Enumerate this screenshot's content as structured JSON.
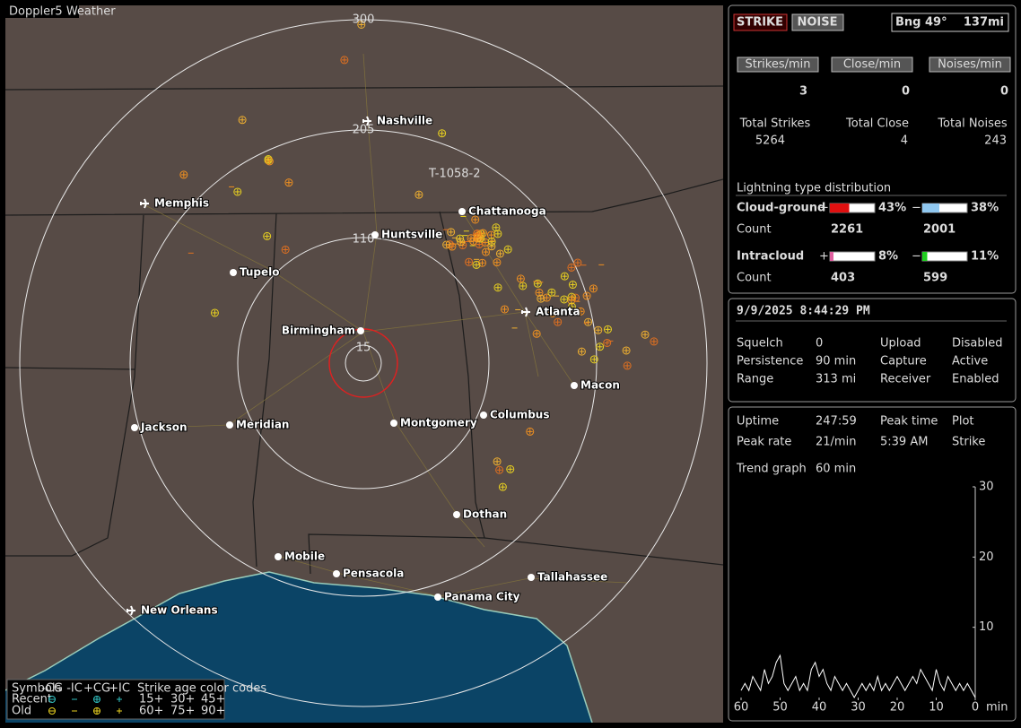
{
  "map": {
    "title": "Doppler5 Weather",
    "rings": [
      "300",
      "205",
      "110",
      "15"
    ],
    "track_label": "T-1058-2",
    "cities": [
      "Nashville",
      "Memphis",
      "Chattanooga",
      "Huntsville",
      "Tupelo",
      "Atlanta",
      "Birmingham",
      "Macon",
      "Jackson",
      "Meridian",
      "Montgomery",
      "Columbus",
      "Dothan",
      "Mobile",
      "Pensacola",
      "Tallahassee",
      "Panama City",
      "New Orleans"
    ],
    "legend": {
      "symbols_label": "Symbols",
      "symbol_types": [
        "-CG",
        "-IC",
        "+CG",
        "+IC"
      ],
      "age_label": "Strike age color codes",
      "rows": [
        "Recent",
        "Old"
      ],
      "ages": [
        [
          "15+",
          "30+",
          "45+"
        ],
        [
          "60+",
          "75+",
          "90+"
        ]
      ]
    }
  },
  "mode_buttons": [
    "STRIKE",
    "NOISE"
  ],
  "bearing": {
    "label": "Bng 49°",
    "distance": "137mi"
  },
  "rates": [
    {
      "label": "Strikes/min",
      "value": 3
    },
    {
      "label": "Close/min",
      "value": 0
    },
    {
      "label": "Noises/min",
      "value": 0
    }
  ],
  "totals": [
    {
      "label": "Total Strikes",
      "value": 5264
    },
    {
      "label": "Total Close",
      "value": 4
    },
    {
      "label": "Total Noises",
      "value": 243
    }
  ],
  "distribution": {
    "title": "Lightning type distribution",
    "count_label": "Count",
    "types": [
      {
        "name": "Cloud-ground",
        "plus": {
          "sign": "+",
          "percent": 43,
          "percent_label": "43%",
          "count": 2261
        },
        "minus": {
          "sign": "−",
          "percent": 38,
          "percent_label": "38%",
          "count": 2001
        }
      },
      {
        "name": "Intracloud",
        "plus": {
          "sign": "+",
          "percent": 8,
          "percent_label": "8%",
          "count": 403
        },
        "minus": {
          "sign": "−",
          "percent": 11,
          "percent_label": "11%",
          "count": 599
        }
      }
    ]
  },
  "clock": "9/9/2025 8:44:29 PM",
  "status": [
    [
      "Squelch",
      0,
      "Upload",
      "Disabled"
    ],
    [
      "Persistence",
      "90 min",
      "Capture",
      "Active"
    ],
    [
      "Range",
      "313 mi",
      "Receiver",
      "Enabled"
    ]
  ],
  "stats": [
    [
      "Uptime",
      "247:59",
      "Peak time",
      "Plot"
    ],
    [
      "Peak rate",
      "21/min",
      "5:39 AM",
      "Strike"
    ],
    [
      "Trend graph",
      "60 min"
    ]
  ],
  "trend": {
    "xlim": [
      60,
      0
    ],
    "xticks": [
      60,
      50,
      40,
      30,
      20,
      10,
      0
    ],
    "x_unit": "min",
    "ylim": [
      0,
      30
    ],
    "yticks": [
      10,
      20,
      30
    ],
    "values": [
      1,
      2,
      1,
      3,
      2,
      1,
      4,
      2,
      3,
      5,
      6,
      2,
      1,
      2,
      3,
      1,
      2,
      1,
      4,
      5,
      3,
      4,
      2,
      1,
      3,
      2,
      1,
      2,
      1,
      0,
      1,
      2,
      1,
      2,
      1,
      3,
      1,
      2,
      1,
      2,
      3,
      2,
      1,
      2,
      3,
      2,
      4,
      3,
      2,
      1,
      4,
      2,
      1,
      3,
      2,
      1,
      2,
      1,
      2,
      1,
      0
    ]
  }
}
